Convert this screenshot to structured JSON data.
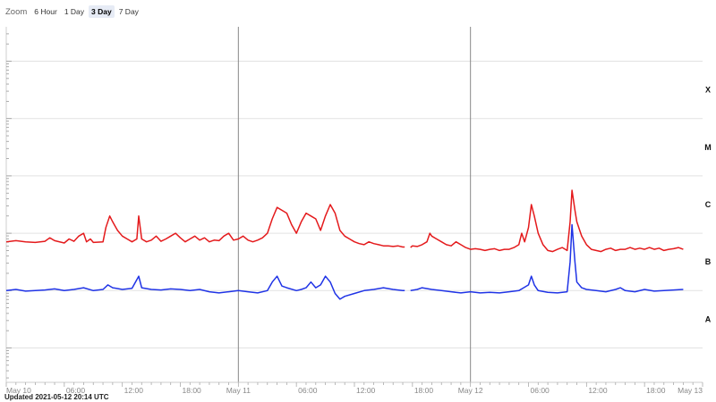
{
  "zoom": {
    "label": "Zoom",
    "options": [
      "6 Hour",
      "1 Day",
      "3 Day",
      "7 Day"
    ],
    "selected": "3 Day"
  },
  "updated": "Updated 2021-05-12 20:14 UTC",
  "chart_data": {
    "type": "line",
    "x_unit": "UTC hours",
    "x_range": [
      "2021-05-10 00:00",
      "2021-05-13 00:00"
    ],
    "x_ticks": [
      {
        "hour": 0,
        "label": "May 10"
      },
      {
        "hour": 6,
        "label": "06:00"
      },
      {
        "hour": 12,
        "label": "12:00"
      },
      {
        "hour": 18,
        "label": "18:00"
      },
      {
        "hour": 24,
        "label": "May 11"
      },
      {
        "hour": 30,
        "label": "06:00"
      },
      {
        "hour": 36,
        "label": "12:00"
      },
      {
        "hour": 42,
        "label": "18:00"
      },
      {
        "hour": 48,
        "label": "May 12"
      },
      {
        "hour": 54,
        "label": "06:00"
      },
      {
        "hour": 60,
        "label": "12:00"
      },
      {
        "hour": 66,
        "label": "18:00"
      },
      {
        "hour": 72,
        "label": "May 13"
      }
    ],
    "y_scale": "log",
    "y_class_labels": [
      "A",
      "B",
      "C",
      "M",
      "X"
    ],
    "y_range_level": [
      -0.6,
      5.6
    ],
    "day_dividers": [
      24,
      48
    ],
    "grid": true,
    "series": [
      {
        "color": "#e41a1c",
        "points": [
          [
            0,
            1.85
          ],
          [
            1,
            1.87
          ],
          [
            2,
            1.85
          ],
          [
            3,
            1.84
          ],
          [
            4,
            1.86
          ],
          [
            4.5,
            1.92
          ],
          [
            5,
            1.87
          ],
          [
            6,
            1.83
          ],
          [
            6.5,
            1.9
          ],
          [
            7,
            1.86
          ],
          [
            7.5,
            1.95
          ],
          [
            8,
            2.0
          ],
          [
            8.3,
            1.85
          ],
          [
            8.7,
            1.9
          ],
          [
            9,
            1.84
          ],
          [
            10,
            1.85
          ],
          [
            10.3,
            2.1
          ],
          [
            10.7,
            2.3
          ],
          [
            11,
            2.2
          ],
          [
            11.5,
            2.05
          ],
          [
            12,
            1.95
          ],
          [
            12.5,
            1.9
          ],
          [
            13,
            1.85
          ],
          [
            13.5,
            1.9
          ],
          [
            13.7,
            2.3
          ],
          [
            14,
            1.9
          ],
          [
            14.5,
            1.85
          ],
          [
            15,
            1.88
          ],
          [
            15.5,
            1.95
          ],
          [
            16,
            1.86
          ],
          [
            16.5,
            1.9
          ],
          [
            17,
            1.95
          ],
          [
            17.5,
            2.0
          ],
          [
            18,
            1.92
          ],
          [
            18.5,
            1.85
          ],
          [
            19,
            1.9
          ],
          [
            19.5,
            1.95
          ],
          [
            20,
            1.88
          ],
          [
            20.5,
            1.92
          ],
          [
            21,
            1.85
          ],
          [
            21.5,
            1.88
          ],
          [
            22,
            1.87
          ],
          [
            22.5,
            1.95
          ],
          [
            23,
            2.0
          ],
          [
            23.5,
            1.88
          ],
          [
            24,
            1.9
          ],
          [
            24.5,
            1.95
          ],
          [
            25,
            1.88
          ],
          [
            25.5,
            1.85
          ],
          [
            26,
            1.88
          ],
          [
            26.5,
            1.92
          ],
          [
            27,
            2.0
          ],
          [
            27.5,
            2.25
          ],
          [
            28,
            2.45
          ],
          [
            28.5,
            2.4
          ],
          [
            29,
            2.35
          ],
          [
            29.5,
            2.15
          ],
          [
            30,
            2.0
          ],
          [
            30.5,
            2.2
          ],
          [
            31,
            2.35
          ],
          [
            31.5,
            2.3
          ],
          [
            32,
            2.25
          ],
          [
            32.5,
            2.05
          ],
          [
            33,
            2.3
          ],
          [
            33.5,
            2.5
          ],
          [
            34,
            2.35
          ],
          [
            34.5,
            2.05
          ],
          [
            35,
            1.95
          ],
          [
            35.5,
            1.9
          ],
          [
            36,
            1.85
          ],
          [
            36.5,
            1.82
          ],
          [
            37,
            1.8
          ],
          [
            37.5,
            1.85
          ],
          [
            38,
            1.82
          ],
          [
            38.5,
            1.8
          ],
          [
            39,
            1.78
          ],
          [
            39.5,
            1.78
          ],
          [
            40,
            1.77
          ],
          [
            40.5,
            1.78
          ],
          [
            41,
            1.76
          ],
          [
            41.2,
            1.76
          ]
        ]
      },
      {
        "color": "#e41a1c",
        "points": [
          [
            41.8,
            1.75
          ],
          [
            42,
            1.78
          ],
          [
            42.5,
            1.77
          ],
          [
            43,
            1.8
          ],
          [
            43.5,
            1.85
          ],
          [
            43.8,
            2.0
          ],
          [
            44,
            1.95
          ],
          [
            44.5,
            1.9
          ],
          [
            45,
            1.85
          ],
          [
            45.5,
            1.8
          ],
          [
            46,
            1.78
          ],
          [
            46.5,
            1.85
          ],
          [
            47,
            1.8
          ],
          [
            47.5,
            1.75
          ],
          [
            48,
            1.72
          ],
          [
            48.5,
            1.73
          ],
          [
            49,
            1.72
          ],
          [
            49.5,
            1.7
          ],
          [
            50,
            1.72
          ],
          [
            50.5,
            1.73
          ],
          [
            51,
            1.7
          ],
          [
            51.5,
            1.72
          ],
          [
            52,
            1.72
          ],
          [
            52.5,
            1.75
          ],
          [
            53,
            1.8
          ],
          [
            53.3,
            2.0
          ],
          [
            53.6,
            1.85
          ],
          [
            54,
            2.1
          ],
          [
            54.3,
            2.5
          ],
          [
            54.6,
            2.3
          ],
          [
            55,
            2.0
          ],
          [
            55.5,
            1.8
          ],
          [
            56,
            1.7
          ],
          [
            56.5,
            1.68
          ],
          [
            57,
            1.72
          ],
          [
            57.5,
            1.75
          ],
          [
            58,
            1.7
          ],
          [
            58.3,
            2.2
          ],
          [
            58.5,
            2.75
          ],
          [
            58.8,
            2.4
          ],
          [
            59,
            2.2
          ],
          [
            59.5,
            1.95
          ],
          [
            60,
            1.8
          ],
          [
            60.5,
            1.72
          ],
          [
            61,
            1.7
          ],
          [
            61.5,
            1.68
          ],
          [
            62,
            1.72
          ],
          [
            62.5,
            1.74
          ],
          [
            63,
            1.7
          ],
          [
            63.5,
            1.72
          ],
          [
            64,
            1.72
          ],
          [
            64.5,
            1.75
          ],
          [
            65,
            1.72
          ],
          [
            65.5,
            1.74
          ],
          [
            66,
            1.72
          ],
          [
            66.5,
            1.75
          ],
          [
            67,
            1.72
          ],
          [
            67.5,
            1.74
          ],
          [
            68,
            1.7
          ],
          [
            68.5,
            1.72
          ],
          [
            69,
            1.73
          ],
          [
            69.5,
            1.75
          ],
          [
            70,
            1.72
          ]
        ]
      },
      {
        "color": "#1f33e6",
        "points": [
          [
            0,
            1.0
          ],
          [
            1,
            1.02
          ],
          [
            2,
            0.99
          ],
          [
            3,
            1.0
          ],
          [
            4,
            1.01
          ],
          [
            5,
            1.03
          ],
          [
            6,
            1.0
          ],
          [
            7,
            1.02
          ],
          [
            8,
            1.05
          ],
          [
            9,
            1.0
          ],
          [
            10,
            1.02
          ],
          [
            10.5,
            1.1
          ],
          [
            11,
            1.05
          ],
          [
            12,
            1.02
          ],
          [
            13,
            1.04
          ],
          [
            13.7,
            1.25
          ],
          [
            14,
            1.05
          ],
          [
            15,
            1.02
          ],
          [
            16,
            1.01
          ],
          [
            17,
            1.03
          ],
          [
            18,
            1.02
          ],
          [
            19,
            1.0
          ],
          [
            20,
            1.02
          ],
          [
            21,
            0.98
          ],
          [
            22,
            0.96
          ],
          [
            23,
            0.98
          ],
          [
            24,
            1.0
          ],
          [
            25,
            0.98
          ],
          [
            26,
            0.96
          ],
          [
            27,
            1.0
          ],
          [
            27.5,
            1.15
          ],
          [
            28,
            1.25
          ],
          [
            28.5,
            1.08
          ],
          [
            29,
            1.05
          ],
          [
            30,
            1.0
          ],
          [
            30.5,
            1.02
          ],
          [
            31,
            1.05
          ],
          [
            31.5,
            1.15
          ],
          [
            32,
            1.05
          ],
          [
            32.5,
            1.1
          ],
          [
            33,
            1.25
          ],
          [
            33.5,
            1.15
          ],
          [
            34,
            0.95
          ],
          [
            34.5,
            0.85
          ],
          [
            35,
            0.9
          ],
          [
            36,
            0.95
          ],
          [
            37,
            1.0
          ],
          [
            38,
            1.02
          ],
          [
            39,
            1.05
          ],
          [
            40,
            1.02
          ],
          [
            41,
            1.0
          ],
          [
            41.2,
            1.0
          ]
        ]
      },
      {
        "color": "#1f33e6",
        "points": [
          [
            41.8,
            1.0
          ],
          [
            42.5,
            1.02
          ],
          [
            43,
            1.05
          ],
          [
            44,
            1.02
          ],
          [
            45,
            1.0
          ],
          [
            46,
            0.98
          ],
          [
            47,
            0.96
          ],
          [
            48,
            0.98
          ],
          [
            49,
            0.96
          ],
          [
            50,
            0.97
          ],
          [
            51,
            0.96
          ],
          [
            52,
            0.98
          ],
          [
            53,
            1.0
          ],
          [
            53.5,
            1.05
          ],
          [
            54,
            1.1
          ],
          [
            54.3,
            1.25
          ],
          [
            54.6,
            1.1
          ],
          [
            55,
            1.0
          ],
          [
            56,
            0.97
          ],
          [
            57,
            0.96
          ],
          [
            58,
            0.98
          ],
          [
            58.3,
            1.5
          ],
          [
            58.5,
            2.15
          ],
          [
            58.8,
            1.5
          ],
          [
            59,
            1.15
          ],
          [
            59.5,
            1.05
          ],
          [
            60,
            1.02
          ],
          [
            61,
            1.0
          ],
          [
            62,
            0.98
          ],
          [
            63,
            1.02
          ],
          [
            63.5,
            1.05
          ],
          [
            64,
            1.0
          ],
          [
            65,
            0.98
          ],
          [
            66,
            1.02
          ],
          [
            67,
            0.99
          ],
          [
            68,
            1.0
          ],
          [
            69,
            1.01
          ],
          [
            70,
            1.02
          ]
        ]
      }
    ]
  }
}
